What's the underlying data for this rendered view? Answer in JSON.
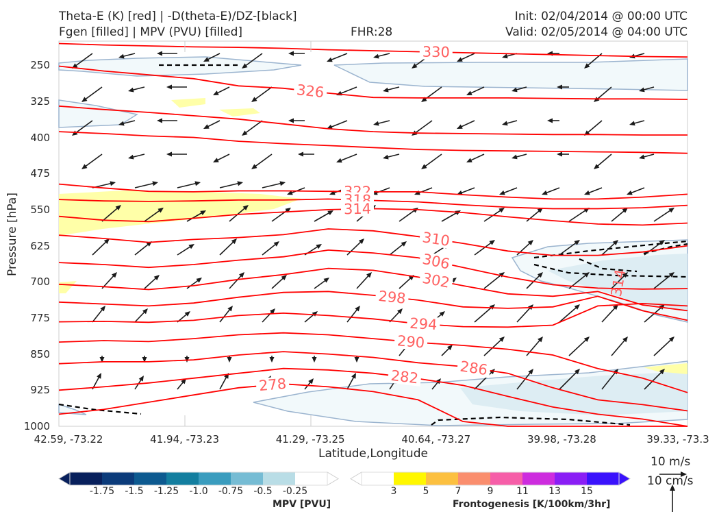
{
  "header": {
    "title_line1": "Theta-E (K) [red] | -D(theta-E)/DZ-[black]",
    "title_line2": "Fgen [filled] | MPV (PVU) [filled]",
    "fhr": "FHR:28",
    "init": "Init: 02/04/2014 @ 00:00 UTC",
    "valid": "Valid: 02/05/2014 @ 04:00 UTC"
  },
  "chart_data": {
    "type": "cross-section",
    "xlabel": "Latitude,Longitude",
    "ylabel": "Pressure [hPa]",
    "ylim": [
      1000,
      200
    ],
    "x_ticks": [
      "42.59, -73.22",
      "41.94, -73.23",
      "41.29, -73.25",
      "40.64, -73.27",
      "39.98, -73.28",
      "39.33, -73.3"
    ],
    "y_ticks": [
      250,
      325,
      400,
      475,
      550,
      625,
      700,
      775,
      850,
      925,
      1000
    ],
    "theta_e_contours": [
      {
        "label": "330",
        "y": [
          205,
          208,
          210,
          212,
          213,
          215,
          218,
          220,
          222,
          224,
          226,
          228,
          230,
          232,
          233
        ]
      },
      {
        "label": "326",
        "y": [
          252,
          262,
          270,
          278,
          293,
          298,
          308,
          317,
          318,
          318,
          318,
          319,
          320,
          320,
          321
        ]
      },
      {
        "label": "",
        "y": [
          335,
          342,
          348,
          355,
          362,
          372,
          382,
          388,
          391,
          392,
          393,
          394,
          394,
          395,
          395
        ]
      },
      {
        "label": "",
        "y": [
          388,
          392,
          397,
          400,
          408,
          413,
          417,
          421,
          425,
          427,
          428,
          429,
          430,
          431,
          433
        ]
      },
      {
        "label": "322",
        "y": [
          497,
          505,
          512,
          513,
          511,
          511,
          512,
          513,
          513,
          519,
          524,
          528,
          528,
          524,
          518
        ]
      },
      {
        "label": "318",
        "y": [
          529,
          532,
          533,
          532,
          530,
          530,
          528,
          531,
          534,
          540,
          545,
          548,
          548,
          546,
          541
        ]
      },
      {
        "label": "314",
        "y": [
          564,
          572,
          575,
          568,
          560,
          555,
          550,
          548,
          550,
          556,
          565,
          573,
          580,
          582,
          578
        ]
      },
      {
        "label": "310",
        "y": [
          603,
          610,
          618,
          612,
          608,
          602,
          590,
          594,
          606,
          620,
          636,
          645,
          645,
          638,
          625
        ]
      },
      {
        "label": "306",
        "y": [
          660,
          664,
          670,
          664,
          655,
          648,
          634,
          640,
          650,
          670,
          690,
          706,
          713,
          715,
          714
        ]
      },
      {
        "label": "302",
        "y": [
          705,
          710,
          716,
          708,
          695,
          685,
          672,
          676,
          690,
          708,
          725,
          730,
          720,
          748,
          760
        ]
      },
      {
        "label": "298",
        "y": [
          742,
          746,
          750,
          744,
          732,
          722,
          720,
          728,
          738,
          752,
          755,
          752,
          730,
          760,
          780
        ]
      },
      {
        "label": "294",
        "y": [
          783,
          782,
          784,
          780,
          770,
          765,
          770,
          777,
          787,
          793,
          794,
          790,
          750,
          745,
          750
        ]
      },
      {
        "label": "290",
        "y": [
          825,
          822,
          824,
          818,
          810,
          806,
          810,
          818,
          826,
          832,
          840,
          852,
          880,
          900,
          930
        ]
      },
      {
        "label": "286",
        "y": [
          870,
          866,
          866,
          862,
          852,
          845,
          850,
          857,
          868,
          876,
          890,
          920,
          945,
          955,
          968
        ]
      },
      {
        "label": "282",
        "y": [
          925,
          918,
          910,
          900,
          890,
          880,
          883,
          890,
          901,
          915,
          938,
          960,
          975,
          985,
          1000
        ]
      },
      {
        "label": "278",
        "y": [
          975,
          965,
          950,
          935,
          920,
          912,
          918,
          928,
          945,
          990,
          1000,
          1000,
          1000,
          1000,
          1000
        ]
      }
    ],
    "annotations": [
      "314"
    ]
  },
  "colorbar_mpv": {
    "title": "MPV [PVU]",
    "ticks": [
      "-1.75",
      "-1.5",
      "-1.25",
      "-1.0",
      "-0.75",
      "-0.5",
      "-0.25"
    ],
    "colors": [
      "#08205c",
      "#0b3b7a",
      "#0d5a90",
      "#137e9f",
      "#3a9cbe",
      "#76bcd4",
      "#b9dde6",
      "#ffffff"
    ]
  },
  "colorbar_fgen": {
    "title": "Frontogenesis [K/100km/3hr]",
    "ticks": [
      "3",
      "5",
      "7",
      "9",
      "11",
      "13",
      "15"
    ],
    "colors": [
      "#ffffff",
      "#fff700",
      "#fcc040",
      "#fa8e6e",
      "#f65ea8",
      "#cd2cde",
      "#8a1ef5",
      "#3a12fc"
    ]
  },
  "vector_ref": {
    "label1": "10 m/s",
    "label2": "10 cm/s"
  }
}
